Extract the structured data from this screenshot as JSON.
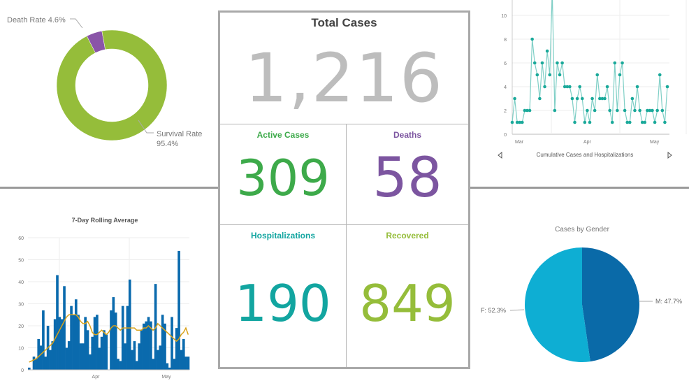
{
  "summary": {
    "total": {
      "label": "Total Cases",
      "value": "1,216",
      "color": "#bdbdbd"
    },
    "active": {
      "label": "Active Cases",
      "value": "309",
      "color": "#3daa4a"
    },
    "deaths": {
      "label": "Deaths",
      "value": "58",
      "color": "#7c55a0"
    },
    "hospitalizations": {
      "label": "Hospitalizations",
      "value": "190",
      "color": "#12a5a0"
    },
    "recovered": {
      "label": "Recovered",
      "value": "849",
      "color": "#95bd3a"
    }
  },
  "nav": {
    "prev_icon": "chevron-left-icon",
    "next_icon": "chevron-right-icon"
  },
  "chart_data": [
    {
      "type": "pie",
      "variant": "donut",
      "slices": [
        {
          "label": "Death Rate 4.6%",
          "value": 4.6,
          "color": "#8a55a8"
        },
        {
          "label": "Survival Rate",
          "label2": "95.4%",
          "value": 95.4,
          "color": "#95bd3a"
        }
      ]
    },
    {
      "type": "line",
      "title": "Cumulative Cases and Hospitalizations",
      "ylim": [
        0,
        11
      ],
      "yticks": [
        0,
        2,
        4,
        6,
        8,
        10
      ],
      "xticks": [
        "Mar",
        "Apr",
        "May"
      ],
      "grid": true,
      "color": "#1aa99a",
      "values": [
        1,
        3,
        1,
        1,
        1,
        2,
        2,
        2,
        8,
        6,
        5,
        3,
        6,
        4,
        7,
        5,
        12,
        2,
        6,
        5,
        6,
        4,
        4,
        4,
        3,
        1,
        3,
        4,
        3,
        1,
        2,
        1,
        3,
        2,
        5,
        3,
        3,
        3,
        4,
        2,
        1,
        6,
        2,
        5,
        6,
        2,
        1,
        1,
        3,
        2,
        4,
        2,
        1,
        1,
        2,
        2,
        2,
        1,
        2,
        5,
        2,
        1,
        4
      ]
    },
    {
      "type": "bar",
      "title": "7-Day Rolling Average",
      "ylim": [
        0,
        60
      ],
      "yticks": [
        0,
        10,
        20,
        30,
        40,
        50,
        60
      ],
      "xticks": [
        "Apr",
        "May"
      ],
      "grid": true,
      "series": [
        {
          "kind": "bar",
          "color": "#0a6aad",
          "values": [
            1,
            0,
            6,
            5,
            14,
            11,
            27,
            6,
            20,
            9,
            13,
            23,
            43,
            24,
            23,
            38,
            10,
            13,
            29,
            25,
            32,
            25,
            12,
            12,
            24,
            18,
            7,
            15,
            24,
            25,
            10,
            15,
            18,
            16,
            0,
            27,
            33,
            26,
            5,
            4,
            29,
            12,
            29,
            41,
            9,
            13,
            4,
            12,
            18,
            21,
            22,
            24,
            22,
            5,
            39,
            9,
            11,
            25,
            21,
            3,
            1,
            24,
            5,
            19,
            54,
            9,
            14,
            6,
            6
          ]
        },
        {
          "kind": "line",
          "color": "#d9a21a",
          "values": [
            3.5,
            4,
            4.5,
            5,
            6,
            7,
            8,
            9,
            10,
            11,
            12,
            14,
            16,
            18,
            20,
            22,
            24,
            25,
            25,
            25,
            25,
            24,
            22,
            21,
            21,
            22,
            20,
            17,
            16,
            16,
            17,
            18,
            17,
            16,
            17,
            19,
            20,
            20,
            19,
            18,
            19,
            19,
            19,
            19,
            19,
            19,
            18,
            18,
            18,
            19,
            19,
            20,
            19,
            18,
            19,
            21,
            20,
            19,
            18,
            17,
            16,
            15,
            14,
            13,
            14,
            16,
            17,
            19,
            16
          ]
        }
      ]
    },
    {
      "type": "pie",
      "title": "Cases by Gender",
      "slices": [
        {
          "label": "M: 47.7%",
          "value": 47.7,
          "color": "#0a6aa8"
        },
        {
          "label": "F: 52.3%",
          "value": 52.3,
          "color": "#0eaed3"
        }
      ]
    }
  ]
}
